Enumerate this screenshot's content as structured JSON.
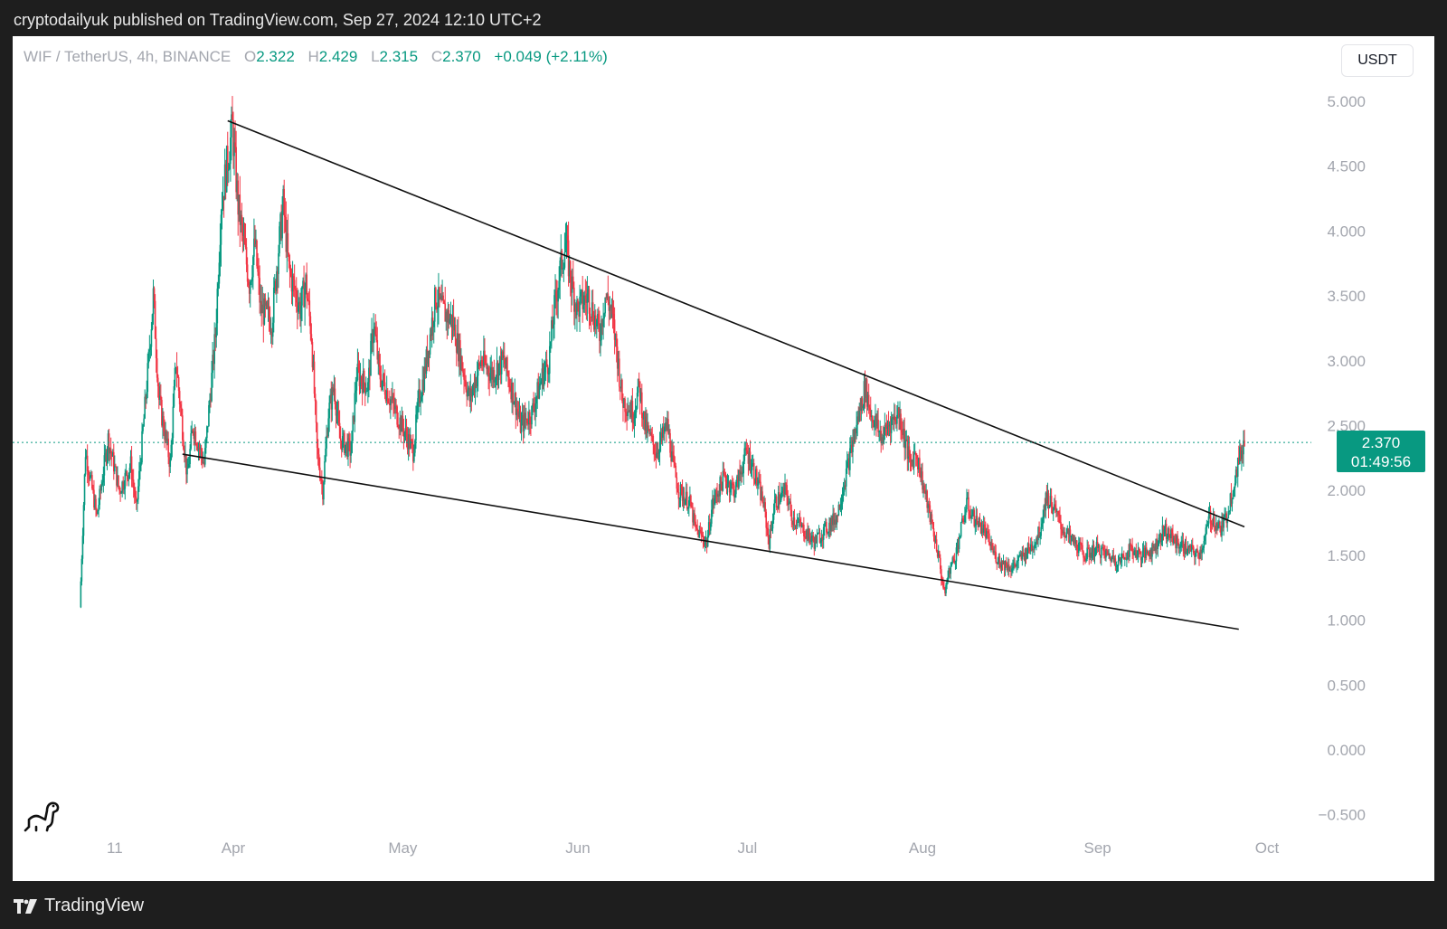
{
  "header": {
    "caption": "cryptodailyuk published on TradingView.com, Sep 27, 2024 12:10 UTC+2"
  },
  "legend": {
    "symbol": "WIF / TetherUS, 4h, BINANCE",
    "open_label": "O",
    "open": "2.322",
    "high_label": "H",
    "high": "2.429",
    "low_label": "L",
    "low": "2.315",
    "close_label": "C",
    "close": "2.370",
    "change": "+0.049 (+2.11%)"
  },
  "currency_button": "USDT",
  "price_tag": {
    "price": "2.370",
    "countdown": "01:49:56"
  },
  "footer": {
    "brand": "TradingView"
  },
  "colors": {
    "up": "#089981",
    "down": "#f23645",
    "axis_text": "#a3a6ae"
  },
  "icons": {
    "logo": "dinosaur-icon",
    "brand": "tradingview-logo-icon"
  },
  "chart_data": {
    "type": "candlestick",
    "xlabel": "",
    "ylabel": "",
    "ylim": [
      -0.6,
      5.2
    ],
    "y_ticks": [
      "5.000",
      "4.500",
      "4.000",
      "3.500",
      "3.000",
      "2.500",
      "2.000",
      "1.500",
      "1.000",
      "0.500",
      "0.000",
      "−0.500"
    ],
    "y_tick_values": [
      5.0,
      4.5,
      4.0,
      3.5,
      3.0,
      2.5,
      2.0,
      1.5,
      1.0,
      0.5,
      0.0,
      -0.5
    ],
    "x_range": [
      "2024-03-05",
      "2024-10-04"
    ],
    "x_ticks": [
      {
        "label": "11",
        "date": "2024-03-11"
      },
      {
        "label": "Apr",
        "date": "2024-04-01"
      },
      {
        "label": "May",
        "date": "2024-05-01"
      },
      {
        "label": "Jun",
        "date": "2024-06-01"
      },
      {
        "label": "Jul",
        "date": "2024-07-01"
      },
      {
        "label": "Aug",
        "date": "2024-08-01"
      },
      {
        "label": "Sep",
        "date": "2024-09-01"
      },
      {
        "label": "Oct",
        "date": "2024-10-01"
      }
    ],
    "current_price": 2.37,
    "price_path": [
      [
        "2024-03-05",
        1.1
      ],
      [
        "2024-03-06",
        2.3
      ],
      [
        "2024-03-08",
        1.8
      ],
      [
        "2024-03-10",
        2.4
      ],
      [
        "2024-03-12",
        2.0
      ],
      [
        "2024-03-14",
        2.2
      ],
      [
        "2024-03-15",
        1.85
      ],
      [
        "2024-03-17",
        2.9
      ],
      [
        "2024-03-18",
        3.5
      ],
      [
        "2024-03-19",
        2.7
      ],
      [
        "2024-03-21",
        2.2
      ],
      [
        "2024-03-22",
        3.0
      ],
      [
        "2024-03-24",
        2.1
      ],
      [
        "2024-03-25",
        2.5
      ],
      [
        "2024-03-27",
        2.2
      ],
      [
        "2024-03-28",
        2.7
      ],
      [
        "2024-03-29",
        3.2
      ],
      [
        "2024-03-30",
        4.2
      ],
      [
        "2024-04-01",
        4.8
      ],
      [
        "2024-04-02",
        4.2
      ],
      [
        "2024-04-04",
        3.6
      ],
      [
        "2024-04-05",
        3.9
      ],
      [
        "2024-04-06",
        3.4
      ],
      [
        "2024-04-08",
        3.3
      ],
      [
        "2024-04-09",
        3.8
      ],
      [
        "2024-04-10",
        4.2
      ],
      [
        "2024-04-11",
        3.7
      ],
      [
        "2024-04-13",
        3.4
      ],
      [
        "2024-04-14",
        3.6
      ],
      [
        "2024-04-15",
        3.2
      ],
      [
        "2024-04-16",
        2.3
      ],
      [
        "2024-04-17",
        2.0
      ],
      [
        "2024-04-18",
        2.6
      ],
      [
        "2024-04-19",
        2.8
      ],
      [
        "2024-04-20",
        2.4
      ],
      [
        "2024-04-22",
        2.3
      ],
      [
        "2024-04-23",
        2.9
      ],
      [
        "2024-04-25",
        2.8
      ],
      [
        "2024-04-26",
        3.3
      ],
      [
        "2024-04-27",
        2.9
      ],
      [
        "2024-04-29",
        2.7
      ],
      [
        "2024-05-01",
        2.5
      ],
      [
        "2024-05-03",
        2.3
      ],
      [
        "2024-05-04",
        2.7
      ],
      [
        "2024-05-05",
        2.9
      ],
      [
        "2024-05-07",
        3.5
      ],
      [
        "2024-05-08",
        3.4
      ],
      [
        "2024-05-10",
        3.3
      ],
      [
        "2024-05-12",
        2.9
      ],
      [
        "2024-05-13",
        2.7
      ],
      [
        "2024-05-15",
        3.0
      ],
      [
        "2024-05-17",
        2.9
      ],
      [
        "2024-05-19",
        3.0
      ],
      [
        "2024-05-21",
        2.7
      ],
      [
        "2024-05-22",
        2.5
      ],
      [
        "2024-05-24",
        2.6
      ],
      [
        "2024-05-26",
        2.9
      ],
      [
        "2024-05-27",
        3.0
      ],
      [
        "2024-05-28",
        3.4
      ],
      [
        "2024-05-29",
        3.7
      ],
      [
        "2024-05-30",
        3.9
      ],
      [
        "2024-05-31",
        3.6
      ],
      [
        "2024-06-01",
        3.4
      ],
      [
        "2024-06-03",
        3.5
      ],
      [
        "2024-06-05",
        3.2
      ],
      [
        "2024-06-06",
        3.5
      ],
      [
        "2024-06-07",
        3.4
      ],
      [
        "2024-06-08",
        3.1
      ],
      [
        "2024-06-09",
        2.7
      ],
      [
        "2024-06-11",
        2.6
      ],
      [
        "2024-06-12",
        2.8
      ],
      [
        "2024-06-13",
        2.5
      ],
      [
        "2024-06-15",
        2.3
      ],
      [
        "2024-06-17",
        2.5
      ],
      [
        "2024-06-18",
        2.2
      ],
      [
        "2024-06-19",
        2.0
      ],
      [
        "2024-06-21",
        1.9
      ],
      [
        "2024-06-22",
        1.7
      ],
      [
        "2024-06-24",
        1.6
      ],
      [
        "2024-06-25",
        1.9
      ],
      [
        "2024-06-27",
        2.1
      ],
      [
        "2024-06-29",
        2.0
      ],
      [
        "2024-07-01",
        2.3
      ],
      [
        "2024-07-02",
        2.2
      ],
      [
        "2024-07-04",
        1.9
      ],
      [
        "2024-07-05",
        1.6
      ],
      [
        "2024-07-06",
        1.9
      ],
      [
        "2024-07-08",
        2.0
      ],
      [
        "2024-07-09",
        1.8
      ],
      [
        "2024-07-11",
        1.7
      ],
      [
        "2024-07-13",
        1.6
      ],
      [
        "2024-07-15",
        1.7
      ],
      [
        "2024-07-17",
        1.8
      ],
      [
        "2024-07-19",
        2.2
      ],
      [
        "2024-07-20",
        2.4
      ],
      [
        "2024-07-21",
        2.6
      ],
      [
        "2024-07-22",
        2.8
      ],
      [
        "2024-07-23",
        2.6
      ],
      [
        "2024-07-24",
        2.5
      ],
      [
        "2024-07-25",
        2.4
      ],
      [
        "2024-07-26",
        2.5
      ],
      [
        "2024-07-28",
        2.6
      ],
      [
        "2024-07-29",
        2.4
      ],
      [
        "2024-07-30",
        2.2
      ],
      [
        "2024-07-31",
        2.3
      ],
      [
        "2024-08-01",
        2.1
      ],
      [
        "2024-08-02",
        1.9
      ],
      [
        "2024-08-03",
        1.7
      ],
      [
        "2024-08-04",
        1.5
      ],
      [
        "2024-08-05",
        1.2
      ],
      [
        "2024-08-06",
        1.4
      ],
      [
        "2024-08-07",
        1.5
      ],
      [
        "2024-08-08",
        1.7
      ],
      [
        "2024-08-09",
        1.9
      ],
      [
        "2024-08-10",
        1.8
      ],
      [
        "2024-08-12",
        1.7
      ],
      [
        "2024-08-14",
        1.5
      ],
      [
        "2024-08-15",
        1.45
      ],
      [
        "2024-08-17",
        1.4
      ],
      [
        "2024-08-19",
        1.5
      ],
      [
        "2024-08-21",
        1.6
      ],
      [
        "2024-08-22",
        1.7
      ],
      [
        "2024-08-23",
        1.95
      ],
      [
        "2024-08-24",
        1.9
      ],
      [
        "2024-08-26",
        1.7
      ],
      [
        "2024-08-28",
        1.6
      ],
      [
        "2024-08-30",
        1.5
      ],
      [
        "2024-09-01",
        1.55
      ],
      [
        "2024-09-03",
        1.5
      ],
      [
        "2024-09-05",
        1.45
      ],
      [
        "2024-09-07",
        1.55
      ],
      [
        "2024-09-09",
        1.5
      ],
      [
        "2024-09-11",
        1.55
      ],
      [
        "2024-09-13",
        1.7
      ],
      [
        "2024-09-15",
        1.6
      ],
      [
        "2024-09-17",
        1.55
      ],
      [
        "2024-09-19",
        1.5
      ],
      [
        "2024-09-20",
        1.6
      ],
      [
        "2024-09-21",
        1.8
      ],
      [
        "2024-09-22",
        1.75
      ],
      [
        "2024-09-23",
        1.7
      ],
      [
        "2024-09-24",
        1.8
      ],
      [
        "2024-09-25",
        2.0
      ],
      [
        "2024-09-26",
        2.2
      ],
      [
        "2024-09-27",
        2.37
      ]
    ],
    "trendlines": [
      {
        "name": "",
        "from": [
          "2024-03-31",
          4.85
        ],
        "to": [
          "2024-09-27",
          1.72
        ]
      },
      {
        "name": "",
        "from": [
          "2024-03-23",
          2.28
        ],
        "to": [
          "2024-09-26",
          0.93
        ]
      }
    ]
  }
}
